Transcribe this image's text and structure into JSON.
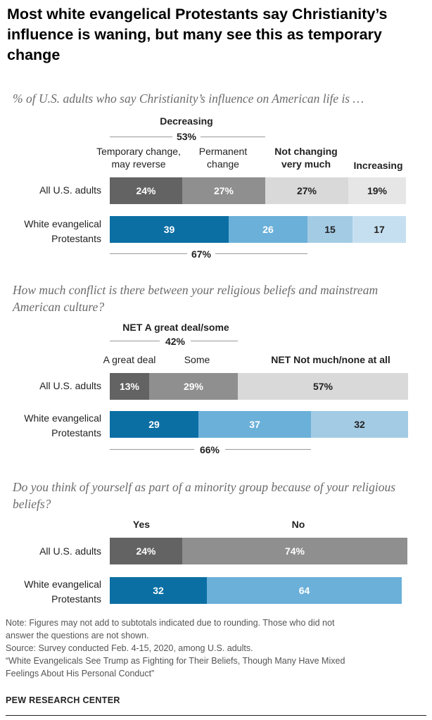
{
  "title": "Most white evangelical Protestants say Christianity’s influence is waning, but many see this as temporary change",
  "colors": {
    "dark_gray": "#636363",
    "mid_gray": "#8f8f8f",
    "light_gray": "#d9d9d9",
    "lighter_gray": "#e6e6e6",
    "dark_blue": "#0b6fa4",
    "mid_blue": "#6bb0d9",
    "light_blue": "#a3cbe4",
    "lighter_blue": "#c6dff0"
  },
  "chart_data": [
    {
      "type": "bar",
      "stacked": true,
      "title": "% of U.S. adults who say Christianity’s influence on American life is …",
      "categories": [
        "All U.S. adults",
        "White evangelical Protestants"
      ],
      "series": [
        {
          "name": "Temporary change, may reverse",
          "values": [
            24,
            39
          ]
        },
        {
          "name": "Permanent change",
          "values": [
            27,
            26
          ]
        },
        {
          "name": "Not changing very much",
          "values": [
            27,
            15
          ]
        },
        {
          "name": "Increasing",
          "values": [
            19,
            17
          ]
        }
      ],
      "value_labels": [
        [
          "24%",
          "27%",
          "27%",
          "19%"
        ],
        [
          "39",
          "26",
          "15",
          "17"
        ]
      ],
      "nets": [
        {
          "label": "Decreasing",
          "value": "53%",
          "category": "All U.S. adults"
        },
        {
          "value": "67%",
          "category": "White evangelical Protestants"
        }
      ]
    },
    {
      "type": "bar",
      "stacked": true,
      "title": "How much conflict is there between your religious beliefs and mainstream American culture?",
      "categories": [
        "All U.S. adults",
        "White evangelical Protestants"
      ],
      "series": [
        {
          "name": "A great deal",
          "values": [
            13,
            29
          ]
        },
        {
          "name": "Some",
          "values": [
            29,
            37
          ]
        },
        {
          "name": "NET Not much/none at all",
          "values": [
            57,
            32
          ]
        }
      ],
      "value_labels": [
        [
          "13%",
          "29%",
          "57%"
        ],
        [
          "29",
          "37",
          "32"
        ]
      ],
      "nets": [
        {
          "label": "NET A great deal/some",
          "value": "42%",
          "category": "All U.S. adults"
        },
        {
          "value": "66%",
          "category": "White evangelical Protestants"
        }
      ]
    },
    {
      "type": "bar",
      "stacked": true,
      "title": "Do you think of yourself as part of a minority group because of your religious beliefs?",
      "categories": [
        "All U.S. adults",
        "White evangelical Protestants"
      ],
      "series": [
        {
          "name": "Yes",
          "values": [
            24,
            32
          ]
        },
        {
          "name": "No",
          "values": [
            74,
            64
          ]
        }
      ],
      "value_labels": [
        [
          "24%",
          "74%"
        ],
        [
          "32",
          "64"
        ]
      ]
    }
  ],
  "labels": {
    "row1": "All U.S. adults",
    "row2_line1": "White evangelical",
    "row2_line2": "Protestants",
    "c1_cat1_line1": "Temporary change,",
    "c1_cat1_line2": "may reverse",
    "c1_cat2_line1": "Permanent",
    "c1_cat2_line2": "change",
    "c1_cat3_line1": "Not changing",
    "c1_cat3_line2": "very much",
    "c1_cat4": "Increasing",
    "c1_net_label": "Decreasing",
    "c1_net_top": "53%",
    "c1_net_bottom": "67%",
    "c2_cat1": "A great deal",
    "c2_cat2": "Some",
    "c2_cat3": "NET Not much/none at all",
    "c2_net_label": "NET A great deal/some",
    "c2_net_top": "42%",
    "c2_net_bottom": "66%",
    "c3_cat1": "Yes",
    "c3_cat2": "No"
  },
  "notes": {
    "line1": "Note: Figures may not add to subtotals indicated due to rounding. Those who did not",
    "line2": "answer the questions are not shown.",
    "line3": "Source: Survey conducted Feb. 4-15, 2020, among U.S. adults.",
    "line4": "“White Evangelicals See Trump as Fighting for Their Beliefs, Though Many Have Mixed",
    "line5": "Feelings About His Personal Conduct”"
  },
  "brand": "PEW RESEARCH CENTER"
}
